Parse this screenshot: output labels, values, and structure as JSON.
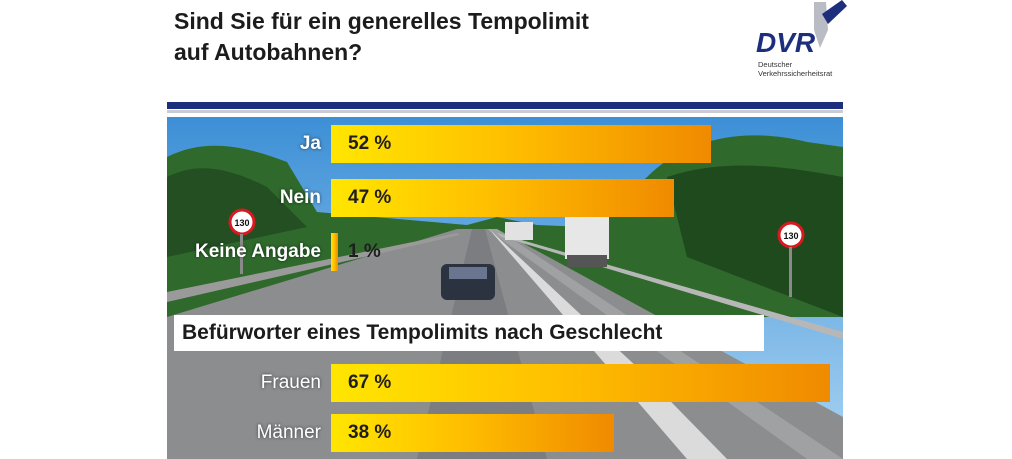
{
  "header": {
    "title_line1": "Sind Sie für ein generelles Tempolimit",
    "title_line2": "auf Autobahnen?"
  },
  "logo": {
    "text": "DVR",
    "sub_line1": "Deutscher",
    "sub_line2": "Verkehrssicherheitsrat"
  },
  "colors": {
    "navy": "#1d2f7c",
    "bar_start": "#ffe600",
    "bar_end": "#f08a00"
  },
  "chart_data": [
    {
      "type": "bar",
      "orientation": "horizontal",
      "categories": [
        "Ja",
        "Nein",
        "Keine Angabe"
      ],
      "values": [
        52,
        47,
        1
      ],
      "value_labels": [
        "52 %",
        "47 %",
        "1 %"
      ],
      "title": "Sind Sie für ein generelles Tempolimit auf Autobahnen?"
    },
    {
      "type": "bar",
      "orientation": "horizontal",
      "categories": [
        "Frauen",
        "Männer"
      ],
      "values": [
        67,
        38
      ],
      "value_labels": [
        "67 %",
        "38 %"
      ],
      "title": "Befürworter eines Tempolimits nach Geschlecht"
    }
  ],
  "background": {
    "speed_sign_label": "130"
  }
}
